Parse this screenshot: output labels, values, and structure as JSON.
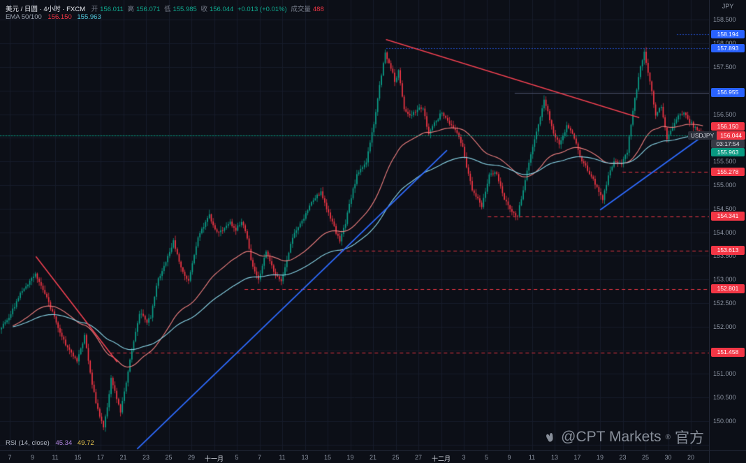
{
  "header": {
    "symbol_title": "美元 / 日圆 · 4小时 · FXCM",
    "ohlc": {
      "open_label": "开",
      "open": "156.011",
      "high_label": "高",
      "high": "156.071",
      "low_label": "低",
      "low": "155.985",
      "close_label": "收",
      "close": "156.044",
      "change": "+0.013 (+0.01%)",
      "volume_label": "成交量",
      "volume": "488"
    },
    "indicator": {
      "name": "EMA 50/100",
      "ema50": "156.150",
      "ema100": "155.963"
    }
  },
  "rsi": {
    "name": "RSI (14, close)",
    "value1": "45.34",
    "value2": "49.72"
  },
  "watermark": {
    "text": "@CPT Markets",
    "reg": "®",
    "suffix": "官方"
  },
  "price_axis": {
    "currency": "JPY",
    "labels": [
      "158.500",
      "158.000",
      "157.500",
      "157.000",
      "156.500",
      "155.500",
      "155.000",
      "154.500",
      "154.000",
      "153.500",
      "153.000",
      "152.500",
      "152.000",
      "151.500",
      "151.000",
      "150.500",
      "150.000"
    ],
    "badges": [
      {
        "text": "158.194",
        "price": 158.194,
        "bg": "#2962ff",
        "role": "level"
      },
      {
        "text": "157.893",
        "price": 157.893,
        "bg": "#2962ff",
        "role": "level"
      },
      {
        "text": "156.955",
        "price": 156.955,
        "bg": "#2962ff",
        "role": "level"
      },
      {
        "text": "156.150",
        "price": 156.15,
        "bg": "#f23645",
        "role": "ema50"
      },
      {
        "text": "155.963",
        "price": 155.963,
        "bg": "#089981",
        "role": "ema100"
      },
      {
        "text": "155.278",
        "price": 155.278,
        "bg": "#f23645",
        "role": "level"
      },
      {
        "text": "154.341",
        "price": 154.341,
        "bg": "#f23645",
        "role": "level"
      },
      {
        "text": "153.613",
        "price": 153.613,
        "bg": "#f23645",
        "role": "level"
      },
      {
        "text": "152.801",
        "price": 152.801,
        "bg": "#f23645",
        "role": "level"
      },
      {
        "text": "151.458",
        "price": 151.458,
        "bg": "#f23645",
        "role": "level"
      }
    ],
    "last_price_badge": {
      "prefix": "USDJPY",
      "value": "156.044",
      "time": "03:17:54"
    }
  },
  "time_axis": {
    "labels": [
      {
        "text": "7"
      },
      {
        "text": "9"
      },
      {
        "text": "11"
      },
      {
        "text": "15"
      },
      {
        "text": "17"
      },
      {
        "text": "21"
      },
      {
        "text": "23"
      },
      {
        "text": "25"
      },
      {
        "text": "29"
      },
      {
        "text": "十一月",
        "month": true
      },
      {
        "text": "5"
      },
      {
        "text": "7"
      },
      {
        "text": "11"
      },
      {
        "text": "13"
      },
      {
        "text": "15"
      },
      {
        "text": "19"
      },
      {
        "text": "21"
      },
      {
        "text": "25"
      },
      {
        "text": "27"
      },
      {
        "text": "十二月",
        "month": true
      },
      {
        "text": "3"
      },
      {
        "text": "5"
      },
      {
        "text": "9"
      },
      {
        "text": "11"
      },
      {
        "text": "13"
      },
      {
        "text": "17"
      },
      {
        "text": "19"
      },
      {
        "text": "23"
      },
      {
        "text": "25"
      },
      {
        "text": "30"
      },
      {
        "text": "20"
      }
    ]
  },
  "chart_data": {
    "type": "candlestick",
    "symbol": "USDJPY",
    "timeframe": "4小时",
    "title": "美元 / 日圆 · 4小时 · FXCM",
    "last_price": 156.044,
    "last_time": "03:17:54",
    "open": 156.011,
    "high": 156.071,
    "low": 155.985,
    "close": 156.044,
    "change": 0.013,
    "change_pct": 0.01,
    "volume": 488,
    "ema50_value": 156.15,
    "ema100_value": 155.963,
    "rsi_values": [
      45.34,
      49.72
    ],
    "y_axis": {
      "min": 149.38,
      "max": 158.92,
      "grid_step": 0.5,
      "unit": "JPY"
    },
    "candle_count": 372,
    "anchors": [
      [
        0,
        152.0
      ],
      [
        4,
        152.2
      ],
      [
        10,
        152.7
      ],
      [
        18,
        153.1
      ],
      [
        23,
        152.7
      ],
      [
        27,
        152.3
      ],
      [
        33,
        151.7
      ],
      [
        36,
        151.5
      ],
      [
        40,
        151.25
      ],
      [
        44,
        151.8
      ],
      [
        47,
        151.0
      ],
      [
        50,
        150.4
      ],
      [
        54,
        149.85
      ],
      [
        56,
        150.3
      ],
      [
        58,
        150.9
      ],
      [
        61,
        150.5
      ],
      [
        63,
        150.2
      ],
      [
        66,
        150.8
      ],
      [
        68,
        151.3
      ],
      [
        73,
        152.3
      ],
      [
        77,
        152.1
      ],
      [
        79,
        152.2
      ],
      [
        82,
        152.9
      ],
      [
        86,
        153.3
      ],
      [
        91,
        153.8
      ],
      [
        94,
        153.4
      ],
      [
        96,
        153.15
      ],
      [
        99,
        152.95
      ],
      [
        104,
        153.9
      ],
      [
        110,
        154.35
      ],
      [
        113,
        154.05
      ],
      [
        115,
        154.0
      ],
      [
        121,
        154.2
      ],
      [
        124,
        154.05
      ],
      [
        127,
        154.25
      ],
      [
        130,
        153.9
      ],
      [
        132,
        153.4
      ],
      [
        136,
        153.0
      ],
      [
        140,
        153.6
      ],
      [
        143,
        153.3
      ],
      [
        145,
        153.1
      ],
      [
        148,
        152.95
      ],
      [
        151,
        153.4
      ],
      [
        154,
        153.9
      ],
      [
        160,
        154.3
      ],
      [
        165,
        154.7
      ],
      [
        169,
        154.85
      ],
      [
        173,
        154.4
      ],
      [
        176,
        154.1
      ],
      [
        179,
        153.8
      ],
      [
        182,
        154.2
      ],
      [
        184,
        154.6
      ],
      [
        188,
        155.2
      ],
      [
        193,
        155.5
      ],
      [
        197,
        156.3
      ],
      [
        200,
        157.1
      ],
      [
        203,
        157.8
      ],
      [
        206,
        157.5
      ],
      [
        208,
        157.2
      ],
      [
        210,
        157.4
      ],
      [
        213,
        156.6
      ],
      [
        216,
        156.45
      ],
      [
        220,
        156.6
      ],
      [
        223,
        156.65
      ],
      [
        226,
        156.05
      ],
      [
        229,
        156.3
      ],
      [
        233,
        156.55
      ],
      [
        237,
        156.3
      ],
      [
        241,
        156.1
      ],
      [
        244,
        155.8
      ],
      [
        246,
        155.4
      ],
      [
        249,
        154.9
      ],
      [
        254,
        154.55
      ],
      [
        258,
        155.2
      ],
      [
        261,
        155.3
      ],
      [
        264,
        155.0
      ],
      [
        266,
        154.7
      ],
      [
        270,
        154.45
      ],
      [
        273,
        154.35
      ],
      [
        278,
        155.3
      ],
      [
        283,
        156.1
      ],
      [
        287,
        156.8
      ],
      [
        290,
        156.4
      ],
      [
        292,
        156.1
      ],
      [
        295,
        155.85
      ],
      [
        299,
        156.25
      ],
      [
        303,
        156.0
      ],
      [
        306,
        155.6
      ],
      [
        311,
        155.25
      ],
      [
        315,
        154.95
      ],
      [
        318,
        154.7
      ],
      [
        321,
        155.2
      ],
      [
        324,
        155.5
      ],
      [
        328,
        155.45
      ],
      [
        331,
        155.7
      ],
      [
        334,
        156.6
      ],
      [
        338,
        157.5
      ],
      [
        340,
        157.8
      ],
      [
        343,
        157.2
      ],
      [
        346,
        156.5
      ],
      [
        349,
        156.65
      ],
      [
        352,
        156.0
      ],
      [
        355,
        156.2
      ],
      [
        358,
        156.45
      ],
      [
        361,
        156.55
      ],
      [
        364,
        156.35
      ],
      [
        367,
        156.2
      ],
      [
        371,
        156.044
      ]
    ],
    "emas": [
      {
        "period": 50,
        "color": "#ef8080",
        "value": 156.15
      },
      {
        "period": 100,
        "color": "#8ad6e8",
        "value": 155.963
      }
    ],
    "levels": [
      {
        "price": 158.194,
        "color": "#2962ff",
        "style": "dotted",
        "from": 0.955
      },
      {
        "price": 157.893,
        "color": "#2962ff",
        "style": "dotted",
        "from": 0.545
      },
      {
        "price": 156.955,
        "color": "#49516a",
        "style": "solid",
        "from": 0.726
      },
      {
        "price": 156.044,
        "color": "#089981",
        "style": "dotted",
        "from": 0.0,
        "current": true
      },
      {
        "price": 155.278,
        "color": "#f23645",
        "style": "dashed",
        "from": 0.878
      },
      {
        "price": 154.341,
        "color": "#f23645",
        "style": "dashed",
        "from": 0.688
      },
      {
        "price": 153.613,
        "color": "#f23645",
        "style": "dashed",
        "from": 0.48
      },
      {
        "price": 152.801,
        "color": "#f23645",
        "style": "dashed",
        "from": 0.345
      },
      {
        "price": 151.458,
        "color": "#f23645",
        "style": "dashed",
        "from": 0.156
      }
    ],
    "trendlines": [
      {
        "x1": 0.051,
        "p1": 153.48,
        "x2": 0.165,
        "p2": 151.26,
        "color": "#ef4050",
        "width": 1.6
      },
      {
        "x1": 0.194,
        "p1": 149.42,
        "x2": 0.63,
        "p2": 155.73,
        "color": "#2e6bff",
        "width": 1.8
      },
      {
        "x1": 0.545,
        "p1": 158.08,
        "x2": 0.901,
        "p2": 156.43,
        "color": "#ef4050",
        "width": 1.6
      },
      {
        "x1": 0.847,
        "p1": 154.48,
        "x2": 0.998,
        "p2": 156.11,
        "color": "#2e6bff",
        "width": 1.8
      }
    ],
    "colors": {
      "up": "#0a9e88",
      "down": "#f23645",
      "bg": "#0c0f17",
      "grid": "#161c2a",
      "axis_text": "#8d95a3"
    }
  }
}
